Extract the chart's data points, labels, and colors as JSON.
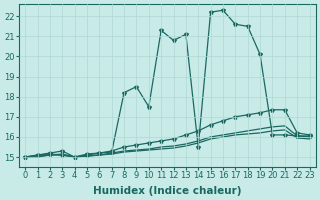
{
  "xlabel": "Humidex (Indice chaleur)",
  "xlim": [
    -0.5,
    23.5
  ],
  "ylim": [
    14.5,
    22.6
  ],
  "xticks": [
    0,
    1,
    2,
    3,
    4,
    5,
    6,
    7,
    8,
    9,
    10,
    11,
    12,
    13,
    14,
    15,
    16,
    17,
    18,
    19,
    20,
    21,
    22,
    23
  ],
  "yticks": [
    15,
    16,
    17,
    18,
    19,
    20,
    21,
    22
  ],
  "bg_color": "#c8ebe8",
  "grid_color": "#b0d8d4",
  "line_color": "#1a6860",
  "curve1_x": [
    0,
    1,
    2,
    3,
    4,
    5,
    6,
    7,
    8,
    9,
    10,
    11,
    12,
    13,
    14,
    15,
    16,
    17,
    18,
    19,
    20,
    21,
    22,
    23
  ],
  "curve1_y": [
    15.0,
    15.1,
    15.2,
    15.3,
    15.0,
    15.1,
    15.2,
    15.3,
    15.5,
    15.6,
    15.7,
    15.8,
    15.9,
    16.1,
    16.3,
    16.6,
    16.8,
    17.0,
    17.1,
    17.2,
    17.35,
    17.35,
    16.2,
    16.1
  ],
  "curve2_x": [
    0,
    1,
    2,
    3,
    4,
    5,
    6,
    7,
    8,
    9,
    10,
    11,
    12,
    13,
    14,
    15,
    16,
    17,
    18,
    19,
    20,
    21,
    22,
    23
  ],
  "curve2_y": [
    15.0,
    15.05,
    15.1,
    15.15,
    15.0,
    15.05,
    15.1,
    15.2,
    15.3,
    15.35,
    15.4,
    15.5,
    15.55,
    15.65,
    15.8,
    16.0,
    16.1,
    16.2,
    16.3,
    16.4,
    16.5,
    16.55,
    16.05,
    16.0
  ],
  "curve3_x": [
    0,
    1,
    2,
    3,
    4,
    5,
    6,
    7,
    8,
    9,
    10,
    11,
    12,
    13,
    14,
    15,
    16,
    17,
    18,
    19,
    20,
    21,
    22,
    23
  ],
  "curve3_y": [
    15.0,
    15.1,
    15.15,
    15.1,
    15.0,
    15.15,
    15.2,
    15.25,
    18.2,
    18.5,
    17.5,
    21.3,
    20.8,
    21.1,
    15.5,
    22.2,
    22.3,
    21.6,
    21.5,
    20.1,
    16.1,
    16.1,
    16.05,
    16.05
  ],
  "curve4_x": [
    0,
    1,
    2,
    3,
    4,
    5,
    6,
    7,
    8,
    9,
    10,
    11,
    12,
    13,
    14,
    15,
    16,
    17,
    18,
    19,
    20,
    21,
    22,
    23
  ],
  "curve4_y": [
    15.0,
    15.0,
    15.1,
    15.1,
    15.0,
    15.05,
    15.1,
    15.15,
    15.25,
    15.3,
    15.35,
    15.4,
    15.45,
    15.55,
    15.7,
    15.9,
    16.0,
    16.1,
    16.15,
    16.2,
    16.3,
    16.35,
    15.95,
    15.9
  ],
  "tick_fontsize": 6.0,
  "label_fontsize": 7.5
}
